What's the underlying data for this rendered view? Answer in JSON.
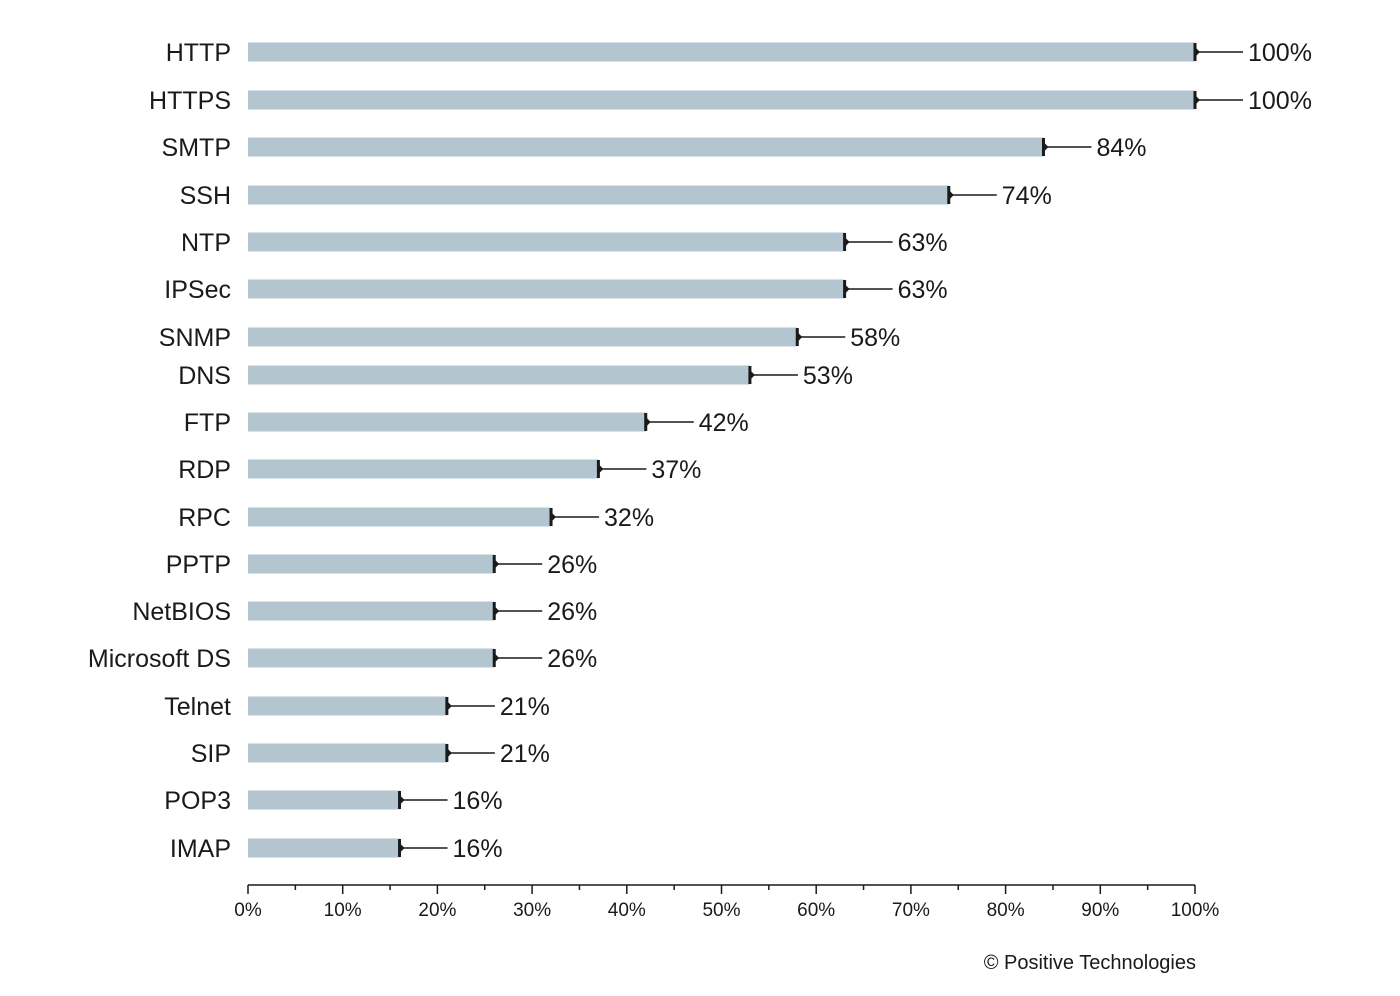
{
  "chart_data": {
    "type": "bar",
    "orientation": "horizontal",
    "categories": [
      "HTTP",
      "HTTPS",
      "SMTP",
      "SSH",
      "NTP",
      "IPSec",
      "SNMP",
      "DNS",
      "FTP",
      "RDP",
      "RPC",
      "PPTP",
      "NetBIOS",
      "Microsoft DS",
      "Telnet",
      "SIP",
      "POP3",
      "IMAP"
    ],
    "values": [
      100,
      100,
      84,
      74,
      63,
      63,
      58,
      53,
      42,
      37,
      32,
      26,
      26,
      26,
      21,
      21,
      16,
      16
    ],
    "value_labels": [
      "100%",
      "100%",
      "84%",
      "74%",
      "63%",
      "63%",
      "58%",
      "53%",
      "42%",
      "37%",
      "32%",
      "26%",
      "26%",
      "26%",
      "21%",
      "21%",
      "16%",
      "16%"
    ],
    "xlim": [
      0,
      100
    ],
    "x_ticks": [
      0,
      10,
      20,
      30,
      40,
      50,
      60,
      70,
      80,
      90,
      100
    ],
    "x_tick_labels": [
      "0%",
      "10%",
      "20%",
      "30%",
      "40%",
      "50%",
      "60%",
      "70%",
      "80%",
      "90%",
      "100%"
    ],
    "x_minor_tick_step": 5,
    "title": "",
    "xlabel": "",
    "ylabel": "",
    "grid": false,
    "legend": "none",
    "bar_color": "#b3c6cf",
    "marker_color": "#1a1a1a"
  },
  "credit": "© Positive Technologies"
}
